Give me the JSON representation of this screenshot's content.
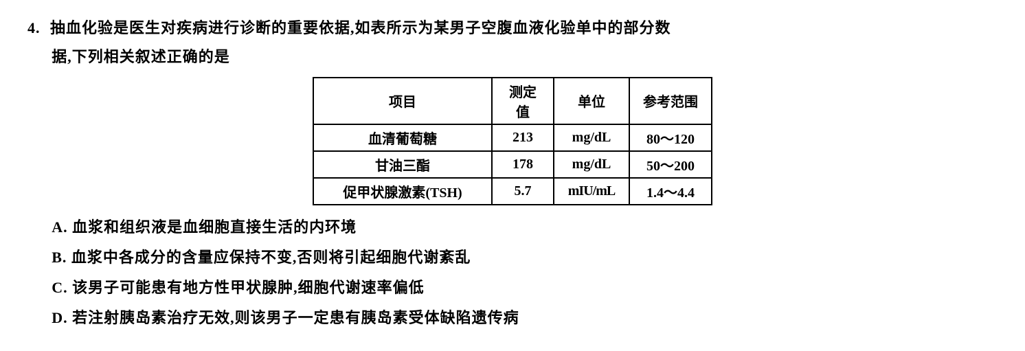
{
  "question": {
    "number": "4.",
    "stem_line1": "抽血化验是医生对疾病进行诊断的重要依据,如表所示为某男子空腹血液化验单中的部分数",
    "stem_line2": "据,下列相关叙述正确的是"
  },
  "table": {
    "headers": {
      "item": "项目",
      "value": "测定值",
      "unit": "单位",
      "ref": "参考范围"
    },
    "rows": [
      {
        "item": "血清葡萄糖",
        "value": "213",
        "unit": "mg/dL",
        "ref": "80～120"
      },
      {
        "item": "甘油三酯",
        "value": "178",
        "unit": "mg/dL",
        "ref": "50～200"
      },
      {
        "item": "促甲状腺激素(TSH)",
        "value": "5.7",
        "unit": "mIU/mL",
        "ref": "1.4～4.4"
      }
    ]
  },
  "options": {
    "A": "A. 血浆和组织液是血细胞直接生活的内环境",
    "B": "B. 血浆中各成分的含量应保持不变,否则将引起细胞代谢紊乱",
    "C": "C. 该男子可能患有地方性甲状腺肿,细胞代谢速率偏低",
    "D": "D. 若注射胰岛素治疗无效,则该男子一定患有胰岛素受体缺陷遗传病"
  }
}
